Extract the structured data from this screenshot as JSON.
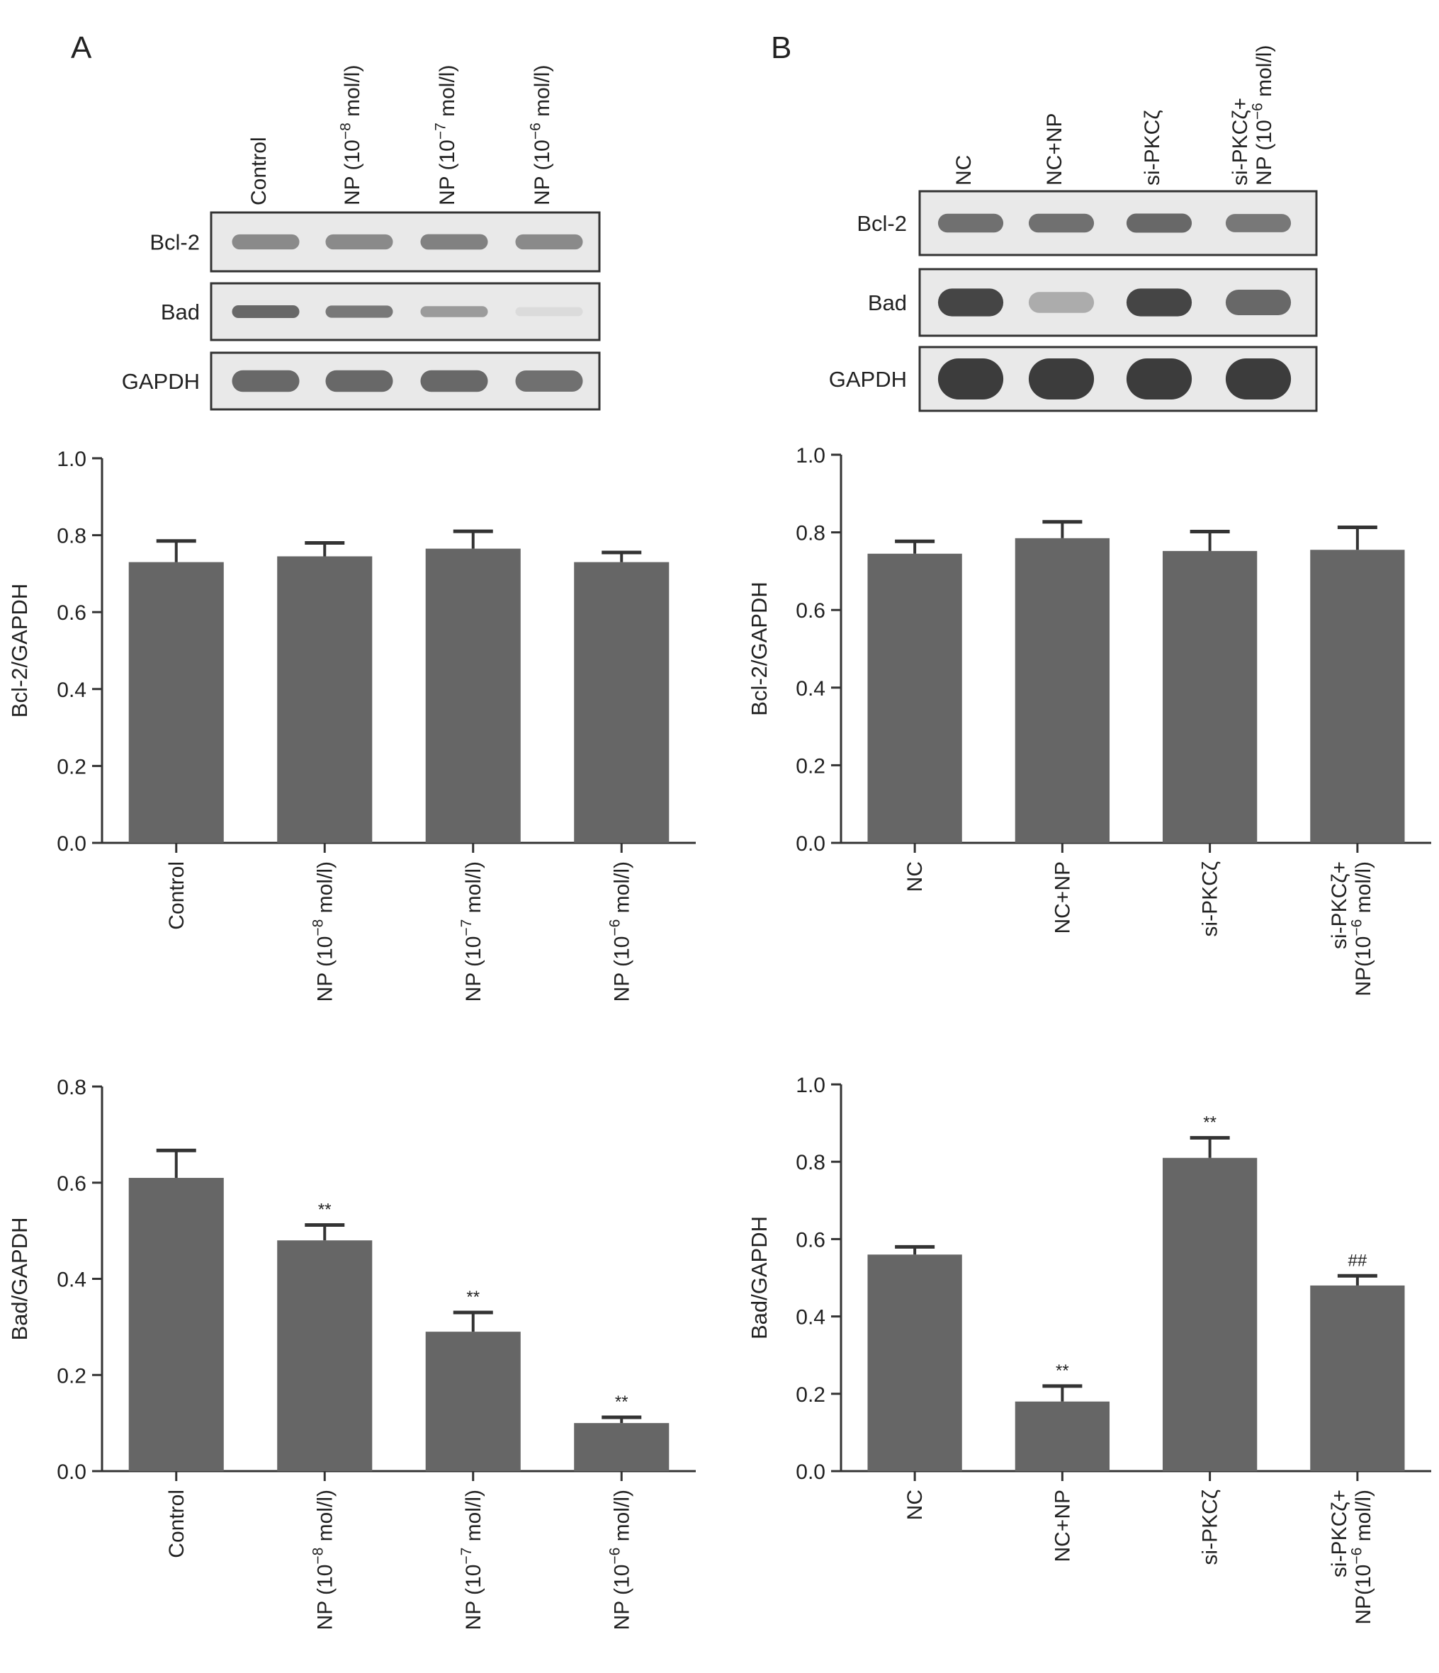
{
  "panels": [
    {
      "letter": "A",
      "blot": {
        "lane_labels": [
          {
            "pre": "Control",
            "sup": "",
            "post": ""
          },
          {
            "pre": "NP (10",
            "sup": "−8",
            "post": " mol/l)"
          },
          {
            "pre": "NP (10",
            "sup": "−7",
            "post": " mol/l)"
          },
          {
            "pre": "NP (10",
            "sup": "−6",
            "post": " mol/l)"
          }
        ],
        "rows": [
          {
            "label": "Bcl-2",
            "intensity": [
              0.55,
              0.55,
              0.6,
              0.55
            ]
          },
          {
            "label": "Bad",
            "intensity": [
              0.75,
              0.65,
              0.45,
              0.08
            ]
          },
          {
            "label": "GAPDH",
            "intensity": [
              0.75,
              0.75,
              0.75,
              0.7
            ]
          }
        ]
      }
    },
    {
      "letter": "B",
      "blot": {
        "lane_labels": [
          {
            "pre": "NC",
            "sup": "",
            "post": ""
          },
          {
            "pre": "NC+NP",
            "sup": "",
            "post": ""
          },
          {
            "pre": "si-PKCζ",
            "sup": "",
            "post": ""
          },
          {
            "pre": "si-PKCζ+",
            "sup": "",
            "post": "",
            "line2pre": "NP (10",
            "line2sup": "−6",
            "line2post": " mol/l)"
          }
        ],
        "rows": [
          {
            "label": "Bcl-2",
            "intensity": [
              0.7,
              0.7,
              0.75,
              0.65
            ]
          },
          {
            "label": "Bad",
            "intensity": [
              0.95,
              0.35,
              0.95,
              0.75
            ]
          },
          {
            "label": "GAPDH",
            "intensity": [
              1.0,
              1.0,
              1.0,
              1.0
            ]
          }
        ]
      }
    }
  ],
  "chart_data": [
    {
      "type": "bar",
      "panel": "A",
      "ylabel": "Bcl-2/GAPDH",
      "ylim": [
        0,
        1.0
      ],
      "yticks": [
        "0.0",
        "0.2",
        "0.4",
        "0.6",
        "0.8",
        "1.0"
      ],
      "categories": [
        {
          "pre": "Control",
          "sup": "",
          "post": ""
        },
        {
          "pre": "NP (10",
          "sup": "−8",
          "post": " mol/l)"
        },
        {
          "pre": "NP (10",
          "sup": "−7",
          "post": " mol/l)"
        },
        {
          "pre": "NP (10",
          "sup": "−6",
          "post": " mol/l)"
        }
      ],
      "values": [
        0.73,
        0.745,
        0.765,
        0.73
      ],
      "errors": [
        0.055,
        0.035,
        0.045,
        0.025
      ],
      "annotations": [
        "",
        "",
        "",
        ""
      ]
    },
    {
      "type": "bar",
      "panel": "B",
      "ylabel": "Bcl-2/GAPDH",
      "ylim": [
        0,
        1.0
      ],
      "yticks": [
        "0.0",
        "0.2",
        "0.4",
        "0.6",
        "0.8",
        "1.0"
      ],
      "categories": [
        {
          "pre": "NC",
          "sup": "",
          "post": ""
        },
        {
          "pre": "NC+NP",
          "sup": "",
          "post": ""
        },
        {
          "pre": "si-PKCζ",
          "sup": "",
          "post": ""
        },
        {
          "pre": "si-PKCζ+",
          "sup": "",
          "post": "",
          "line2pre": "NP(10",
          "line2sup": "−6",
          "line2post": " mol/l)"
        }
      ],
      "values": [
        0.745,
        0.785,
        0.752,
        0.755
      ],
      "errors": [
        0.032,
        0.042,
        0.05,
        0.058
      ],
      "annotations": [
        "",
        "",
        "",
        ""
      ]
    },
    {
      "type": "bar",
      "panel": "A",
      "ylabel": "Bad/GAPDH",
      "ylim": [
        0,
        0.8
      ],
      "yticks": [
        "0.0",
        "0.2",
        "0.4",
        "0.6",
        "0.8"
      ],
      "categories": [
        {
          "pre": "Control",
          "sup": "",
          "post": ""
        },
        {
          "pre": "NP (10",
          "sup": "−8",
          "post": " mol/l)"
        },
        {
          "pre": "NP (10",
          "sup": "−7",
          "post": " mol/l)"
        },
        {
          "pre": "NP (10",
          "sup": "−6",
          "post": " mol/l)"
        }
      ],
      "values": [
        0.61,
        0.48,
        0.29,
        0.1
      ],
      "errors": [
        0.057,
        0.032,
        0.04,
        0.012
      ],
      "annotations": [
        "",
        "**",
        "**",
        "**"
      ]
    },
    {
      "type": "bar",
      "panel": "B",
      "ylabel": "Bad/GAPDH",
      "ylim": [
        0,
        1.0
      ],
      "yticks": [
        "0.0",
        "0.2",
        "0.4",
        "0.6",
        "0.8",
        "1.0"
      ],
      "categories": [
        {
          "pre": "NC",
          "sup": "",
          "post": ""
        },
        {
          "pre": "NC+NP",
          "sup": "",
          "post": ""
        },
        {
          "pre": "si-PKCζ",
          "sup": "",
          "post": ""
        },
        {
          "pre": "si-PKCζ+",
          "sup": "",
          "post": "",
          "line2pre": "NP(10",
          "line2sup": "−6",
          "line2post": " mol/l)"
        }
      ],
      "values": [
        0.56,
        0.18,
        0.81,
        0.48
      ],
      "errors": [
        0.02,
        0.04,
        0.052,
        0.025
      ],
      "annotations": [
        "",
        "**",
        "**",
        "##"
      ]
    }
  ],
  "colors": {
    "bar": "#666666",
    "axis": "#333333",
    "text": "#222222",
    "blot_bg": "#e9e9e9",
    "band": "#3c3c3c"
  }
}
